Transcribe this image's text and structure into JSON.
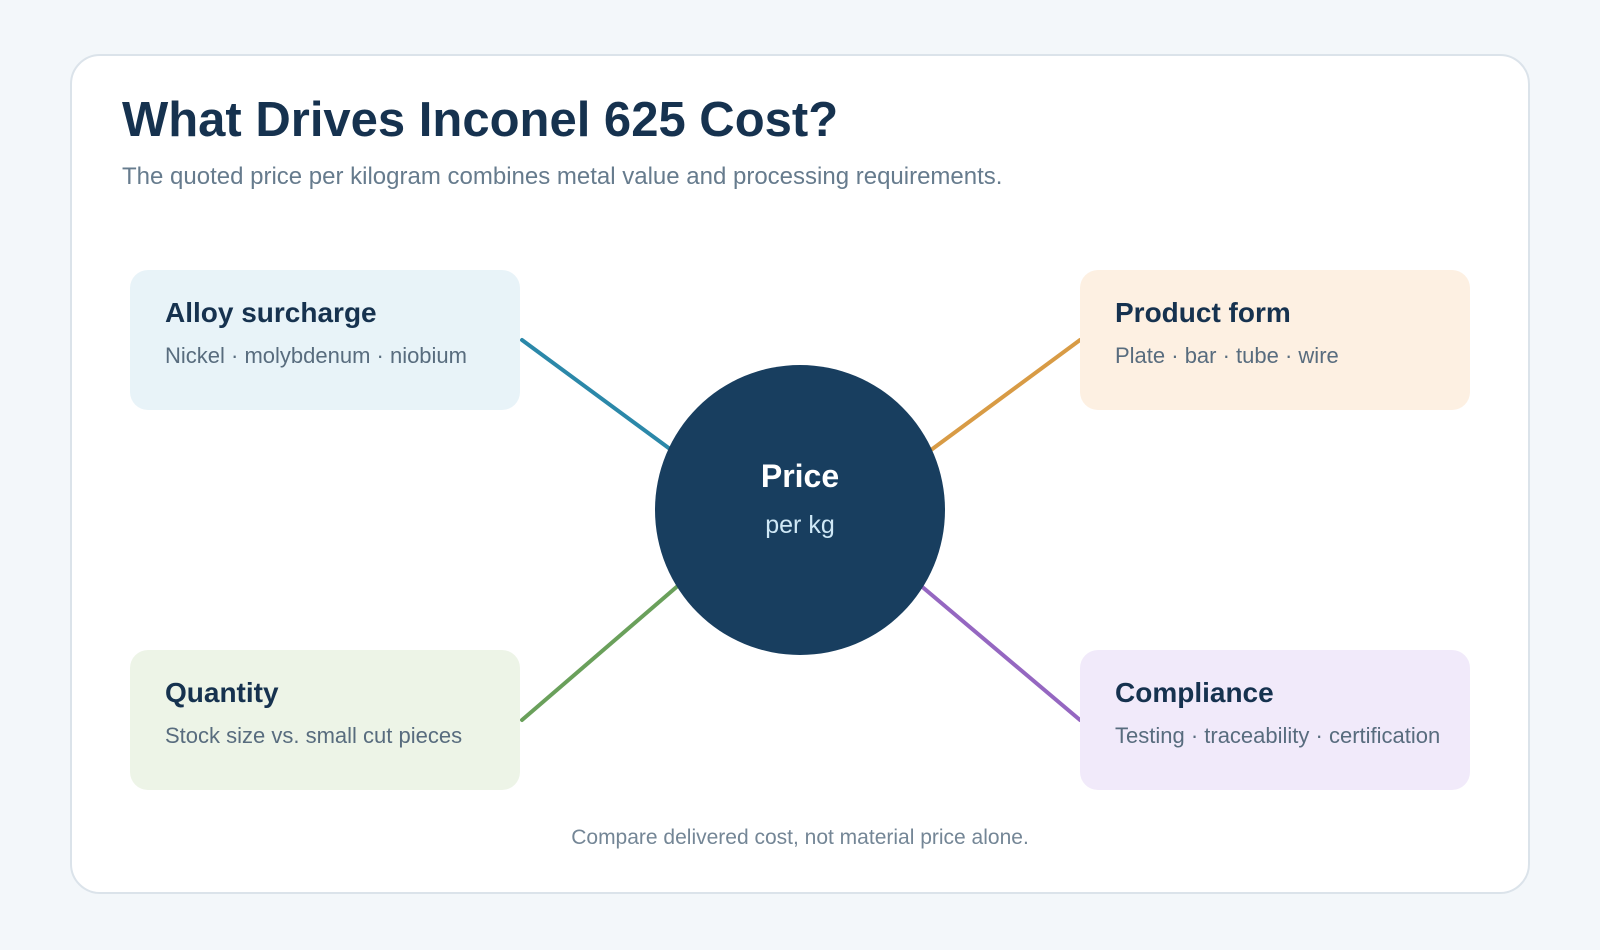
{
  "header": {
    "title": "What Drives Inconel 625 Cost?",
    "subtitle": "The quoted price per kilogram combines metal value and processing requirements."
  },
  "center": {
    "title": "Price",
    "subtitle": "per kg",
    "color": "#183e5f"
  },
  "factors": [
    {
      "title": "Alloy surcharge",
      "detail": "Nickel · molybdenum · niobium",
      "background": "#e8f3f8",
      "line_color": "#2b88a9"
    },
    {
      "title": "Product form",
      "detail": "Plate · bar · tube · wire",
      "background": "#fdf0e2",
      "line_color": "#d89b45"
    },
    {
      "title": "Quantity",
      "detail": "Stock size vs. small cut pieces",
      "background": "#edf4e7",
      "line_color": "#6aa05b"
    },
    {
      "title": "Compliance",
      "detail": "Testing · traceability · certification",
      "background": "#f1eafa",
      "line_color": "#9567c1"
    }
  ],
  "footer": {
    "note": "Compare delivered cost, not material price alone."
  }
}
